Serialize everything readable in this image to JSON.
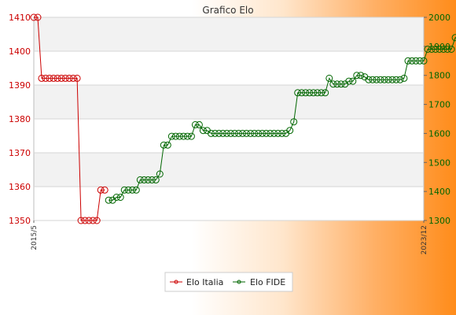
{
  "chart_data": {
    "type": "line",
    "title": "Grafico Elo",
    "left_axis": {
      "ylim": [
        1350,
        1410
      ],
      "ticks": [
        1350,
        1360,
        1370,
        1380,
        1390,
        1400,
        1410
      ],
      "color": "#cc0000"
    },
    "right_axis": {
      "ylim": [
        1300,
        2000
      ],
      "ticks": [
        1300,
        1400,
        1500,
        1600,
        1700,
        1800,
        1900,
        2000
      ],
      "color": "#006600"
    },
    "grid": true,
    "legend_position": "bottom-center",
    "x_count": 100,
    "x_first_label": "2015/5",
    "x_last_label": "2023/12",
    "series": [
      {
        "name": "Elo Italia",
        "axis": "left",
        "color": "#cc0000",
        "values": [
          1410,
          1410,
          1392,
          1392,
          1392,
          1392,
          1392,
          1392,
          1392,
          1392,
          1392,
          1392,
          1350,
          1350,
          1350,
          1350,
          1350,
          1359,
          1359
        ]
      },
      {
        "name": "Elo FIDE",
        "axis": "right",
        "start_index": 19,
        "color": "#006600",
        "values": [
          1370,
          1370,
          1380,
          1380,
          1405,
          1405,
          1405,
          1405,
          1440,
          1440,
          1440,
          1440,
          1440,
          1460,
          1560,
          1560,
          1590,
          1590,
          1590,
          1590,
          1590,
          1590,
          1630,
          1630,
          1610,
          1610,
          1600,
          1600,
          1600,
          1600,
          1600,
          1600,
          1600,
          1600,
          1600,
          1600,
          1600,
          1600,
          1600,
          1600,
          1600,
          1600,
          1600,
          1600,
          1600,
          1600,
          1610,
          1640,
          1740,
          1740,
          1740,
          1740,
          1740,
          1740,
          1740,
          1740,
          1790,
          1770,
          1770,
          1770,
          1770,
          1780,
          1780,
          1800,
          1800,
          1795,
          1785,
          1785,
          1785,
          1785,
          1785,
          1785,
          1785,
          1785,
          1785,
          1790,
          1850,
          1850,
          1850,
          1850,
          1850,
          1890,
          1890,
          1890,
          1890,
          1890,
          1890,
          1890,
          1930,
          1930,
          1930,
          1930,
          1930,
          1930,
          1930,
          1930,
          1930,
          1930,
          1930,
          1930
        ]
      }
    ]
  }
}
